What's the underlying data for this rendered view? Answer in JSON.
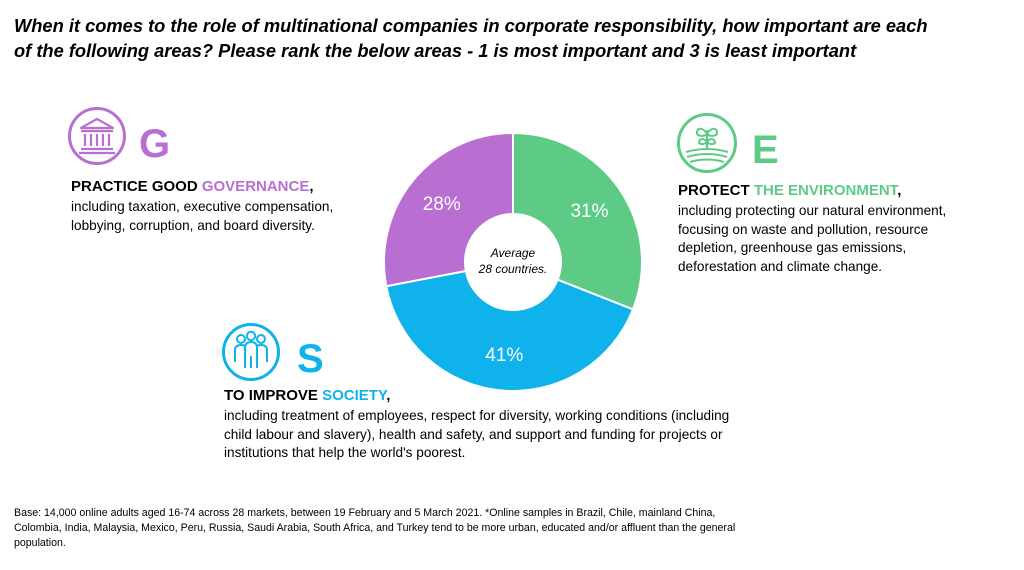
{
  "title": {
    "line1": "When it comes to the role of multinational companies in corporate responsibility, how important are each",
    "line2": "of the following areas? Please rank the below areas - 1 is most important and 3 is least important"
  },
  "colors": {
    "governance": "#b86fd1",
    "environment": "#5dcb86",
    "society": "#0fb2ea"
  },
  "governance": {
    "icon": "government-building-icon",
    "letter": "G",
    "head_prefix": "PRACTICE GOOD ",
    "head_highlight": "GOVERNANCE",
    "head_suffix": ",",
    "lines": [
      "including taxation, executive compensation,",
      "lobbying, corruption, and board diversity."
    ]
  },
  "environment": {
    "icon": "plant-field-icon",
    "letter": "E",
    "head_prefix": "PROTECT ",
    "head_highlight": "THE ENVIRONMENT",
    "head_suffix": ",",
    "lines": [
      "including protecting our natural environment,",
      "focusing on waste and pollution, resource",
      "depletion, greenhouse gas emissions,",
      "deforestation and climate change."
    ]
  },
  "society": {
    "icon": "people-group-icon",
    "letter": "S",
    "head_prefix": "TO IMPROVE ",
    "head_highlight": "SOCIETY",
    "head_suffix": ",",
    "lines": [
      "including treatment of employees, respect for diversity, working conditions (including",
      "child labour and slavery), health and safety, and support and funding for projects or",
      "institutions that help the world's poorest."
    ]
  },
  "center_label": {
    "line1": "Average",
    "line2": "28 countries."
  },
  "chart_data": {
    "type": "pie",
    "donut": true,
    "categories": [
      "Environment",
      "Society",
      "Governance"
    ],
    "values": [
      31,
      41,
      28
    ],
    "labels": [
      "31%",
      "41%",
      "28%"
    ],
    "colors": [
      "#5dcb86",
      "#0fb2ea",
      "#b86fd1"
    ]
  },
  "footnote": {
    "line1": "Base: 14,000 online adults aged 16-74 across 28 markets, between 19 February and 5 March 2021. *Online samples in Brazil, Chile, mainland China,",
    "line2": "Colombia, India, Malaysia, Mexico, Peru, Russia, Saudi Arabia, South Africa, and Turkey tend to be more urban, educated and/or affluent than the general",
    "line3": "population."
  }
}
